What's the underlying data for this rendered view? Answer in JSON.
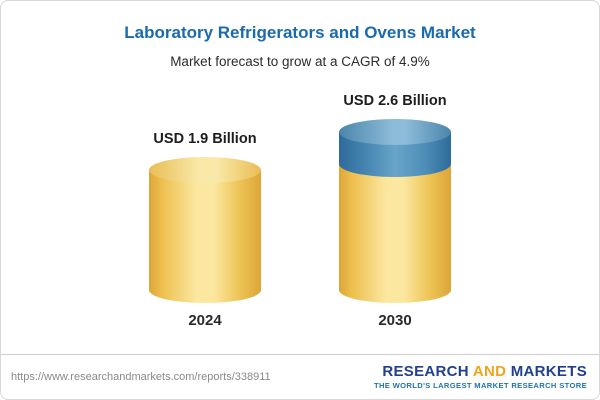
{
  "chart_data": {
    "type": "bar",
    "variant": "cylinder-3d",
    "title": "Laboratory Refrigerators and Ovens Market",
    "subtitle": "Market forecast to grow at a CAGR of 4.9%",
    "categories": [
      "2024",
      "2030"
    ],
    "values": [
      1.9,
      2.6
    ],
    "unit": "USD Billion",
    "value_labels": [
      "USD 1.9 Billion",
      "USD 2.6 Billion"
    ],
    "cagr_percent": 4.9,
    "grid": false,
    "legend": "none",
    "axis": "none",
    "colors": {
      "bar_base": "#f6d06c",
      "bar_growth_segment": "#4c8cb6",
      "title": "#1a6bad",
      "labels": "#1d1d1d"
    },
    "notes": "2030 bar shows base value in yellow with incremental growth segment (0.7B) in blue on top"
  },
  "footer": {
    "url": "https://www.researchandmarkets.com/reports/338911",
    "logo": {
      "word1": "RESEARCH",
      "word2": "AND",
      "word3": "MARKETS",
      "tagline": "THE WORLD'S LARGEST MARKET RESEARCH STORE"
    }
  }
}
